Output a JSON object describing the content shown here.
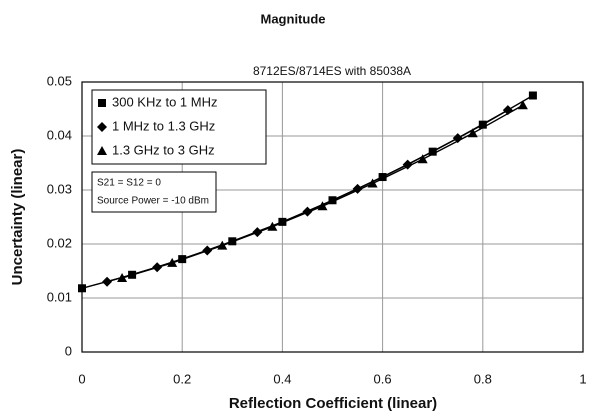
{
  "chart_data": {
    "type": "line",
    "title": "Magnitude",
    "subtitle": "8712ES/8714ES with 85038A",
    "x_label": "Reflection Coefficient (linear)",
    "y_label": "Uncertainty (linear)",
    "xlim": [
      0,
      1
    ],
    "xticks": [
      0,
      0.2,
      0.4,
      0.6,
      0.8,
      1
    ],
    "ylim": [
      0,
      0.05
    ],
    "yticks": [
      0,
      0.01,
      0.02,
      0.03,
      0.04,
      0.05
    ],
    "grid": true,
    "legend": "top-left",
    "annotations": [
      "S21 = S12 = 0",
      "Source Power = -10 dBm"
    ],
    "series": [
      {
        "name": "300 KHz to 1 MHz",
        "marker": "square",
        "color": "#000000",
        "x": [
          0,
          0.1,
          0.2,
          0.3,
          0.4,
          0.5,
          0.6,
          0.7,
          0.8,
          0.9
        ],
        "values": [
          0.0118,
          0.0143,
          0.0172,
          0.0205,
          0.0241,
          0.0281,
          0.0324,
          0.0371,
          0.0421,
          0.0475
        ]
      },
      {
        "name": "1 MHz to 1.3 GHz",
        "marker": "diamond",
        "color": "#000000",
        "x": [
          0.05,
          0.15,
          0.25,
          0.35,
          0.45,
          0.55,
          0.65,
          0.75,
          0.85
        ],
        "values": [
          0.013,
          0.0157,
          0.0188,
          0.0222,
          0.026,
          0.0302,
          0.0347,
          0.0396,
          0.0448
        ]
      },
      {
        "name": "1.3 GHz to 3 GHz",
        "marker": "triangle",
        "color": "#000000",
        "x": [
          0.08,
          0.18,
          0.28,
          0.38,
          0.48,
          0.58,
          0.68,
          0.78,
          0.88
        ],
        "values": [
          0.0137,
          0.0165,
          0.0197,
          0.0232,
          0.027,
          0.0312,
          0.0357,
          0.0405,
          0.0457
        ]
      }
    ]
  }
}
